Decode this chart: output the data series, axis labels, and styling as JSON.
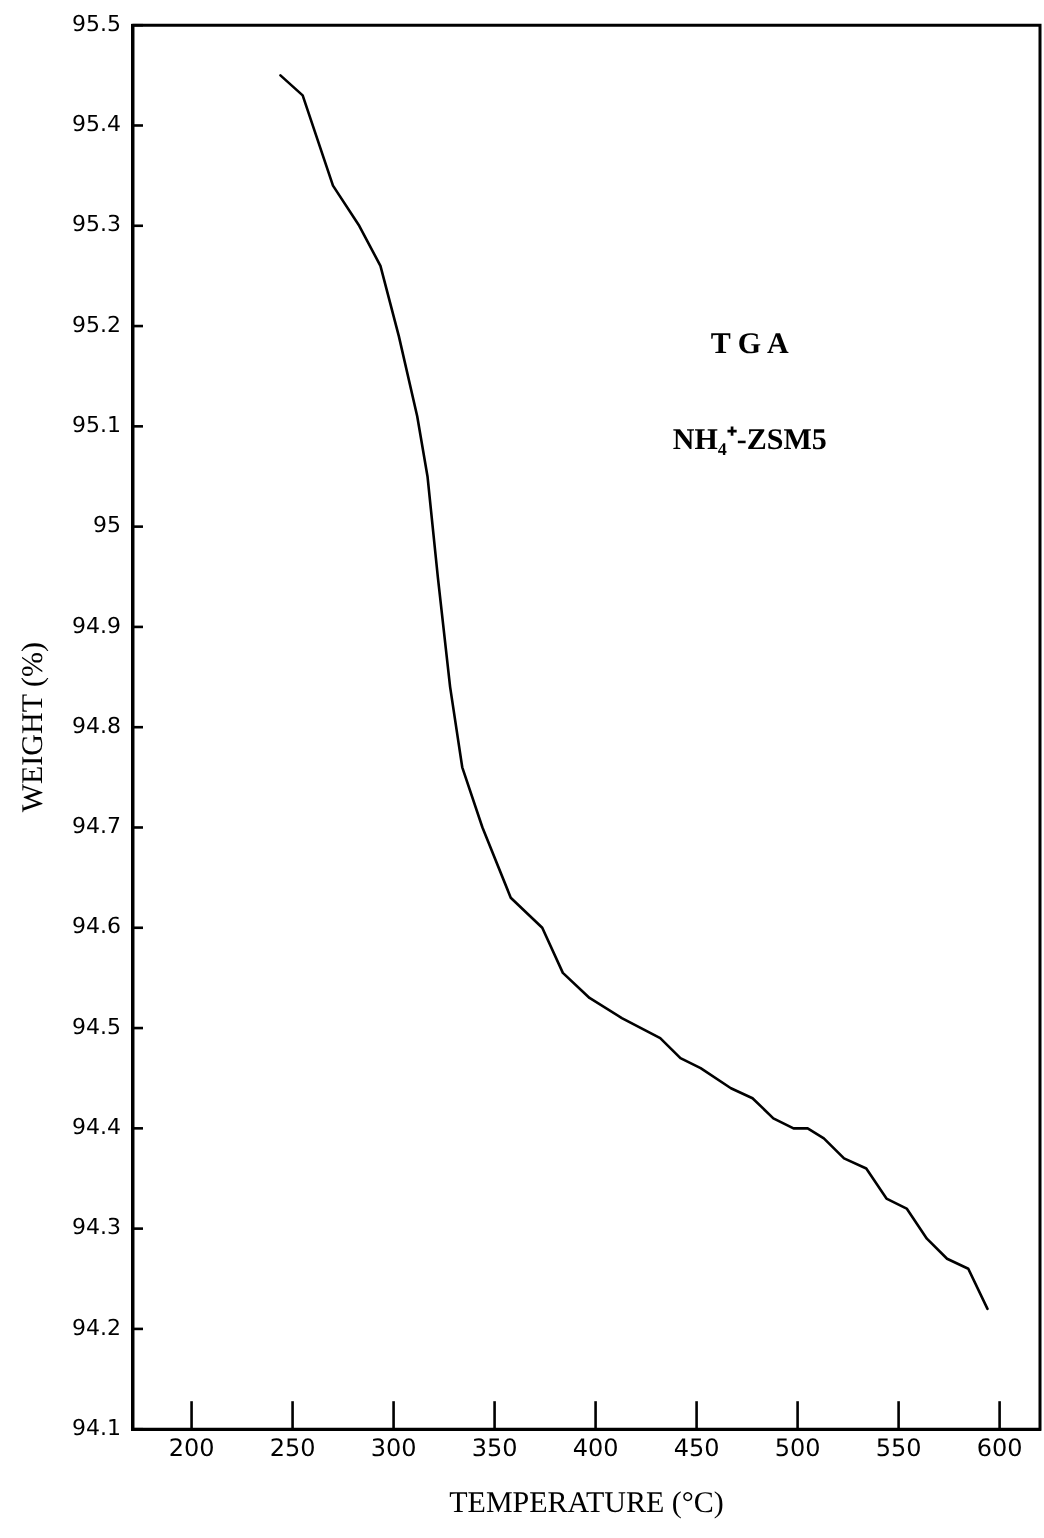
{
  "chart_data": {
    "type": "line",
    "xlabel": "TEMPERATURE (°C)",
    "ylabel": "WEIGHT (%)",
    "annotations": [
      "T G A",
      "NH₄⁺-ZSM5"
    ],
    "x": [
      244,
      255,
      270,
      283,
      293.5,
      302.6,
      311.7,
      316.8,
      321.9,
      328,
      334,
      344,
      358,
      373.6,
      383.8,
      397,
      413,
      432,
      442,
      452,
      467,
      477.7,
      488,
      498,
      505,
      513,
      523,
      534,
      544,
      554,
      564,
      574,
      584.5,
      594
    ],
    "series": [
      {
        "color": "#000000",
        "values": [
          95.45,
          95.43,
          95.34,
          95.3,
          95.26,
          95.19,
          95.11,
          95.05,
          94.95,
          94.84,
          94.76,
          94.7,
          94.63,
          94.6,
          94.555,
          94.53,
          94.51,
          94.49,
          94.47,
          94.46,
          94.44,
          94.43,
          94.41,
          94.4,
          94.4,
          94.39,
          94.37,
          94.36,
          94.33,
          94.32,
          94.29,
          94.27,
          94.26,
          94.22
        ]
      }
    ],
    "xlim": [
      171,
      620
    ],
    "ylim": [
      94.1,
      95.5
    ],
    "xticks": [
      200,
      250,
      300,
      350,
      400,
      450,
      500,
      550,
      600
    ],
    "yticks": [
      94.1,
      94.2,
      94.3,
      94.4,
      94.5,
      94.6,
      94.7,
      94.8,
      94.9,
      95,
      95.1,
      95.2,
      95.3,
      95.4,
      95.5
    ],
    "grid": false,
    "legend": false,
    "marker": "none",
    "line_style": "solid"
  }
}
